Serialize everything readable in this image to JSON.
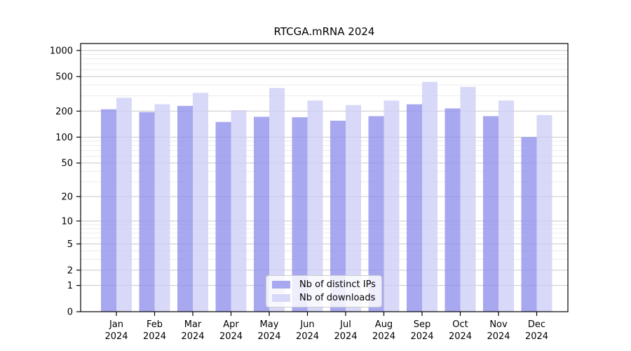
{
  "chart_data": {
    "type": "bar",
    "title": "RTCGA.mRNA 2024",
    "scale": "log(1+x)",
    "grid": "on",
    "legend_position": "lower center",
    "categories": [
      "Jan",
      "Feb",
      "Mar",
      "Apr",
      "May",
      "Jun",
      "Jul",
      "Aug",
      "Sep",
      "Oct",
      "Nov",
      "Dec"
    ],
    "year": "2024",
    "series": [
      {
        "name": "Nb of distinct IPs",
        "color": "#9292ec",
        "composite_color": "#a8a8f0",
        "values": [
          210,
          195,
          230,
          150,
          172,
          170,
          155,
          175,
          240,
          215,
          175,
          100
        ]
      },
      {
        "name": "Nb of downloads",
        "color": "#cecef6",
        "composite_color": "#d8d8f8",
        "values": [
          285,
          240,
          325,
          205,
          370,
          265,
          235,
          265,
          435,
          380,
          265,
          180
        ]
      }
    ],
    "yticks": [
      0,
      1,
      2,
      5,
      10,
      20,
      50,
      100,
      200,
      500,
      1000
    ],
    "ylim": [
      0,
      1200
    ],
    "colors": {
      "major_grid": "#c8c8c8",
      "minor_grid": "#ebebeb",
      "axis": "#000000",
      "text": "#000000"
    }
  }
}
